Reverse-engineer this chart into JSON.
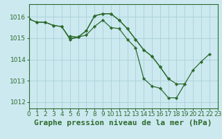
{
  "background_color": "#cce9f0",
  "grid_color": "#aacfda",
  "line_color": "#2d6b2d",
  "marker_color": "#2d6b2d",
  "title": "Graphe pression niveau de la mer (hPa)",
  "xlim": [
    0,
    23
  ],
  "ylim": [
    1011.7,
    1016.6
  ],
  "yticks": [
    1012,
    1013,
    1014,
    1015,
    1016
  ],
  "xticks": [
    0,
    1,
    2,
    3,
    4,
    5,
    6,
    7,
    8,
    9,
    10,
    11,
    12,
    13,
    14,
    15,
    16,
    17,
    18,
    19,
    20,
    21,
    22,
    23
  ],
  "series": [
    {
      "x": [
        0,
        1,
        2,
        3,
        4,
        5,
        6,
        7,
        8,
        9,
        10,
        11,
        12,
        13,
        14,
        15,
        16,
        17,
        18,
        19,
        20,
        21,
        22
      ],
      "y": [
        1015.9,
        1015.75,
        1015.75,
        1015.6,
        1015.55,
        1015.0,
        1015.05,
        1015.15,
        1015.55,
        1015.85,
        1015.5,
        1015.45,
        1014.95,
        1014.55,
        1013.1,
        1012.75,
        1012.65,
        1012.2,
        1012.2,
        1012.85,
        1013.5,
        1013.9,
        1014.25
      ]
    },
    {
      "x": [
        0,
        1,
        2,
        3,
        4,
        5,
        6,
        7,
        8,
        9,
        10,
        11,
        12,
        13,
        14,
        15,
        16,
        17,
        18,
        19
      ],
      "y": [
        1015.9,
        1015.75,
        1015.75,
        1015.6,
        1015.55,
        1014.95,
        1015.05,
        1015.35,
        1016.05,
        1016.15,
        1016.15,
        1015.85,
        1015.45,
        1014.95,
        1014.45,
        1014.15,
        1013.65,
        1013.1,
        1012.85,
        1012.85
      ]
    },
    {
      "x": [
        5,
        6,
        7,
        8,
        9,
        10,
        11,
        12,
        13,
        14,
        15,
        16,
        17
      ],
      "y": [
        1015.1,
        1015.05,
        1015.35,
        1016.05,
        1016.15,
        1016.15,
        1015.85,
        1015.45,
        1014.95,
        1014.45,
        1014.15,
        1013.65,
        1013.1
      ]
    }
  ],
  "title_fontsize": 8,
  "tick_fontsize": 6.5
}
